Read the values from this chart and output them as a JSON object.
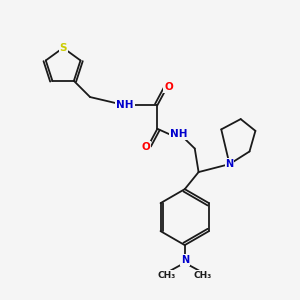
{
  "bg_color": "#f5f5f5",
  "bond_color": "#1a1a1a",
  "N_color": "#0000cd",
  "O_color": "#ff0000",
  "S_color": "#cccc00",
  "lw": 1.3,
  "font_size": 7.5,
  "fig_w": 3.0,
  "fig_h": 3.0,
  "dpi": 100,
  "xlim": [
    0,
    10
  ],
  "ylim": [
    0,
    10
  ]
}
